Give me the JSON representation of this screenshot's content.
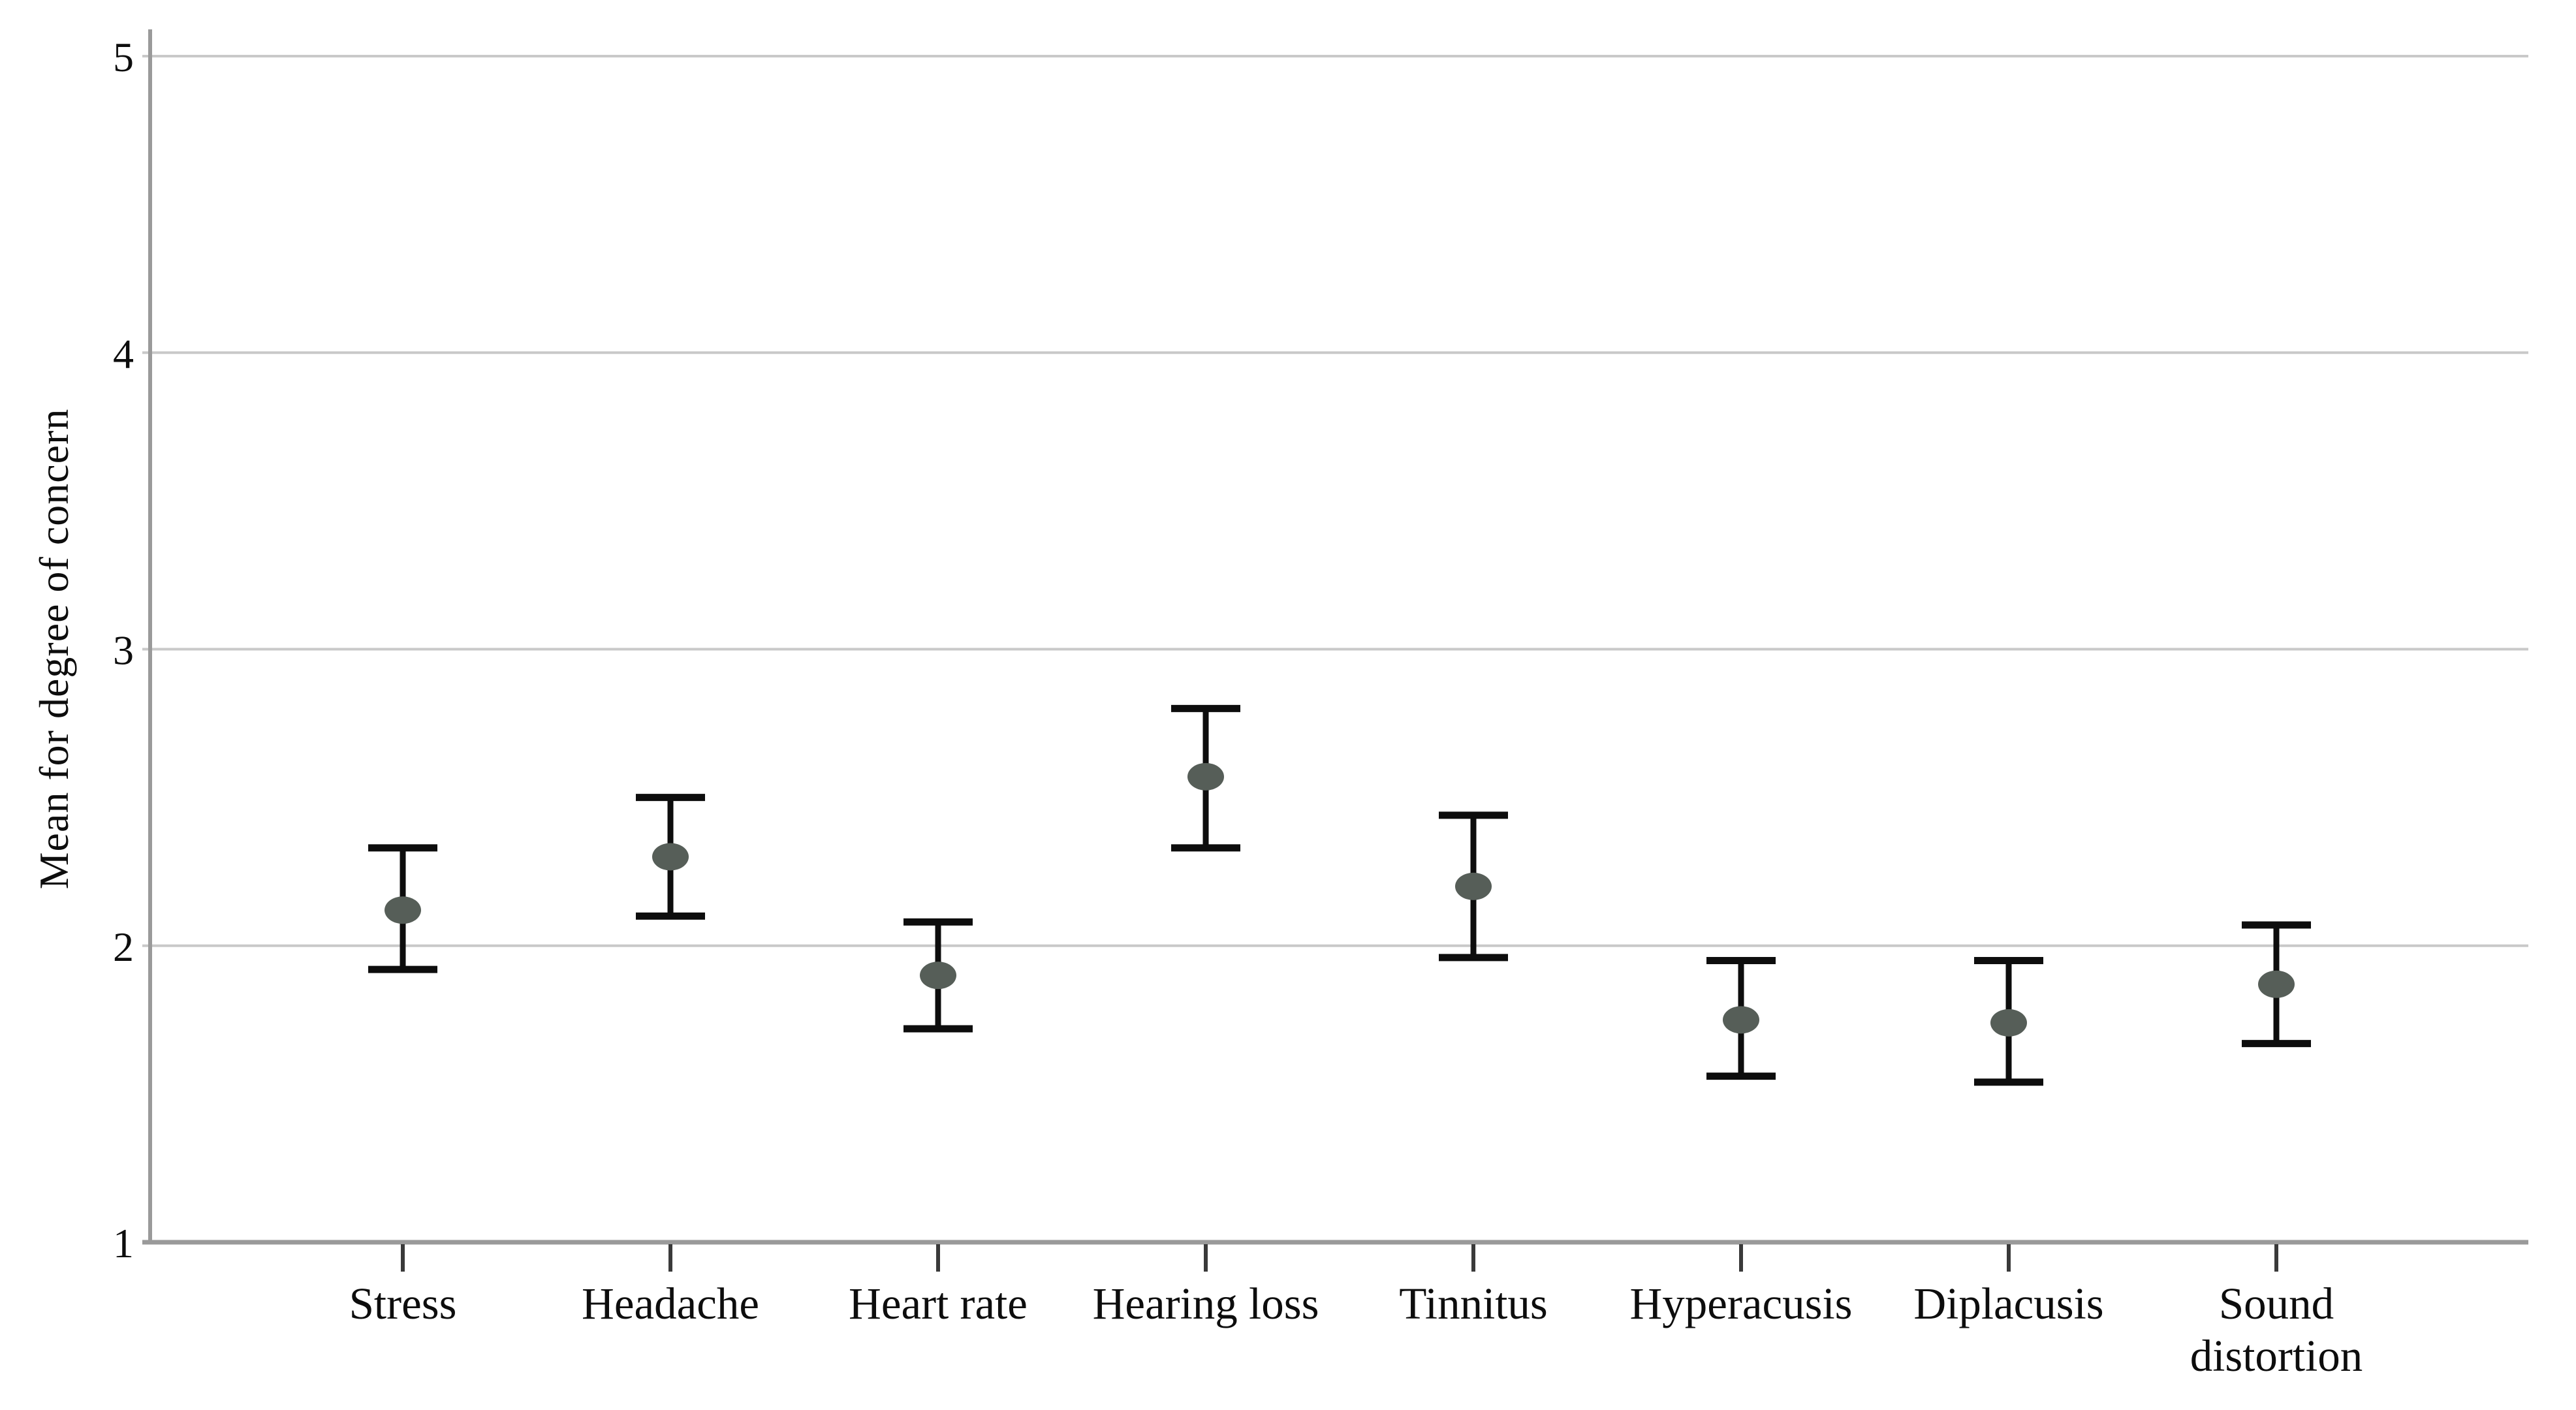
{
  "chart_data": {
    "type": "scatter",
    "subtype": "point-estimates-with-error-bars",
    "title": "",
    "xlabel": "",
    "ylabel": "Mean for degree of concern",
    "ylim": [
      1,
      5
    ],
    "yticks": [
      1,
      2,
      3,
      4,
      5
    ],
    "grid": "horizontal-gridlines-on",
    "legend": "none",
    "categories": [
      "Stress",
      "Headache",
      "Heart rate",
      "Hearing loss",
      "Tinnitus",
      "Hyperacusis",
      "Diplacusis",
      "Sound distortion"
    ],
    "x_tick_label_lines": [
      [
        "Stress"
      ],
      [
        "Headache"
      ],
      [
        "Heart rate"
      ],
      [
        "Hearing loss"
      ],
      [
        "Tinnitus"
      ],
      [
        "Hyperacusis"
      ],
      [
        "Diplacusis"
      ],
      [
        "Sound",
        "distortion"
      ]
    ],
    "points": [
      {
        "category": "Stress",
        "mean": 2.12,
        "ci_low": 1.92,
        "ci_high": 2.33
      },
      {
        "category": "Headache",
        "mean": 2.3,
        "ci_low": 2.1,
        "ci_high": 2.5
      },
      {
        "category": "Heart rate",
        "mean": 1.9,
        "ci_low": 1.72,
        "ci_high": 2.08
      },
      {
        "category": "Hearing loss",
        "mean": 2.57,
        "ci_low": 2.33,
        "ci_high": 2.8
      },
      {
        "category": "Tinnitus",
        "mean": 2.2,
        "ci_low": 1.96,
        "ci_high": 2.44
      },
      {
        "category": "Hyperacusis",
        "mean": 1.75,
        "ci_low": 1.56,
        "ci_high": 1.95
      },
      {
        "category": "Diplacusis",
        "mean": 1.74,
        "ci_low": 1.54,
        "ci_high": 1.95
      },
      {
        "category": "Sound distortion",
        "mean": 1.87,
        "ci_low": 1.67,
        "ci_high": 2.07
      }
    ],
    "colors": {
      "marker_fill": "#565e58",
      "error_bar": "#0d0d0d",
      "gridline": "#c9c9c9",
      "axis_line": "#9a9a9a",
      "tick_mark": "#3a3a3a",
      "text": "#0d0d0d",
      "background": "#ffffff"
    }
  }
}
